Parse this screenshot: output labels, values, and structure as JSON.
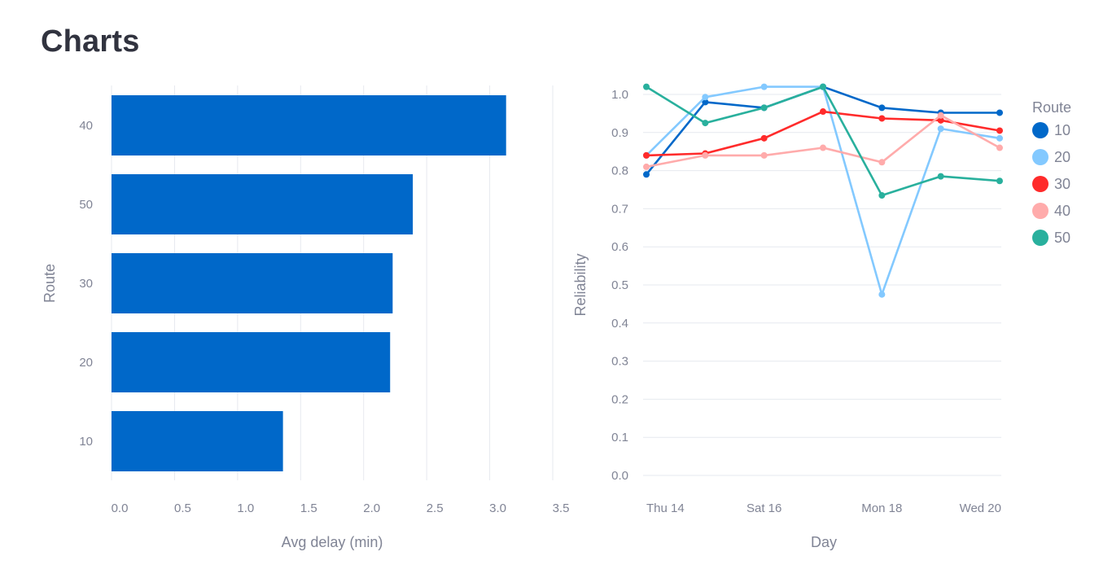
{
  "page": {
    "title": "Charts"
  },
  "chart_data": [
    {
      "type": "bar",
      "orientation": "horizontal",
      "categories": [
        "40",
        "50",
        "30",
        "20",
        "10"
      ],
      "values": [
        3.13,
        2.39,
        2.23,
        2.21,
        1.36
      ],
      "xlabel": "Avg delay (min)",
      "ylabel": "Route",
      "xlim": [
        0,
        3.5
      ],
      "xticks": [
        "0.0",
        "0.5",
        "1.0",
        "1.5",
        "2.0",
        "2.5",
        "3.0",
        "3.5"
      ],
      "grid": true,
      "color": "#0068c9"
    },
    {
      "type": "line",
      "x": [
        "2024-03-14",
        "2024-03-15",
        "2024-03-16",
        "2024-03-17",
        "2024-03-18",
        "2024-03-19",
        "2024-03-20"
      ],
      "xticks": [
        {
          "date": "2024-03-14",
          "label": "Thu 14"
        },
        {
          "date": "2024-03-16",
          "label": "Sat 16"
        },
        {
          "date": "2024-03-18",
          "label": "Mon 18"
        },
        {
          "date": "2024-03-20",
          "label": "Wed 20"
        }
      ],
      "xlabel": "Day",
      "ylabel": "Reliability",
      "ylim": [
        0,
        1.0
      ],
      "yticks": [
        "0.0",
        "0.1",
        "0.2",
        "0.3",
        "0.4",
        "0.5",
        "0.6",
        "0.7",
        "0.8",
        "0.9",
        "1.0"
      ],
      "grid": true,
      "legend": {
        "title": "Route",
        "placement": "right"
      },
      "series": [
        {
          "name": "10",
          "color": "#0068c9",
          "values": [
            0.79,
            0.98,
            0.965,
            1.02,
            0.965,
            0.952,
            0.952
          ]
        },
        {
          "name": "20",
          "color": "#83c9ff",
          "values": [
            0.84,
            0.993,
            1.02,
            1.02,
            0.475,
            0.91,
            0.885
          ]
        },
        {
          "name": "30",
          "color": "#ff2b2b",
          "values": [
            0.84,
            0.845,
            0.885,
            0.955,
            0.937,
            0.932,
            0.905
          ]
        },
        {
          "name": "40",
          "color": "#ffabab",
          "values": [
            0.81,
            0.84,
            0.84,
            0.86,
            0.822,
            0.945,
            0.86
          ]
        },
        {
          "name": "50",
          "color": "#29b09d",
          "values": [
            1.02,
            0.925,
            0.965,
            1.02,
            0.735,
            0.785,
            0.773
          ]
        }
      ]
    }
  ]
}
